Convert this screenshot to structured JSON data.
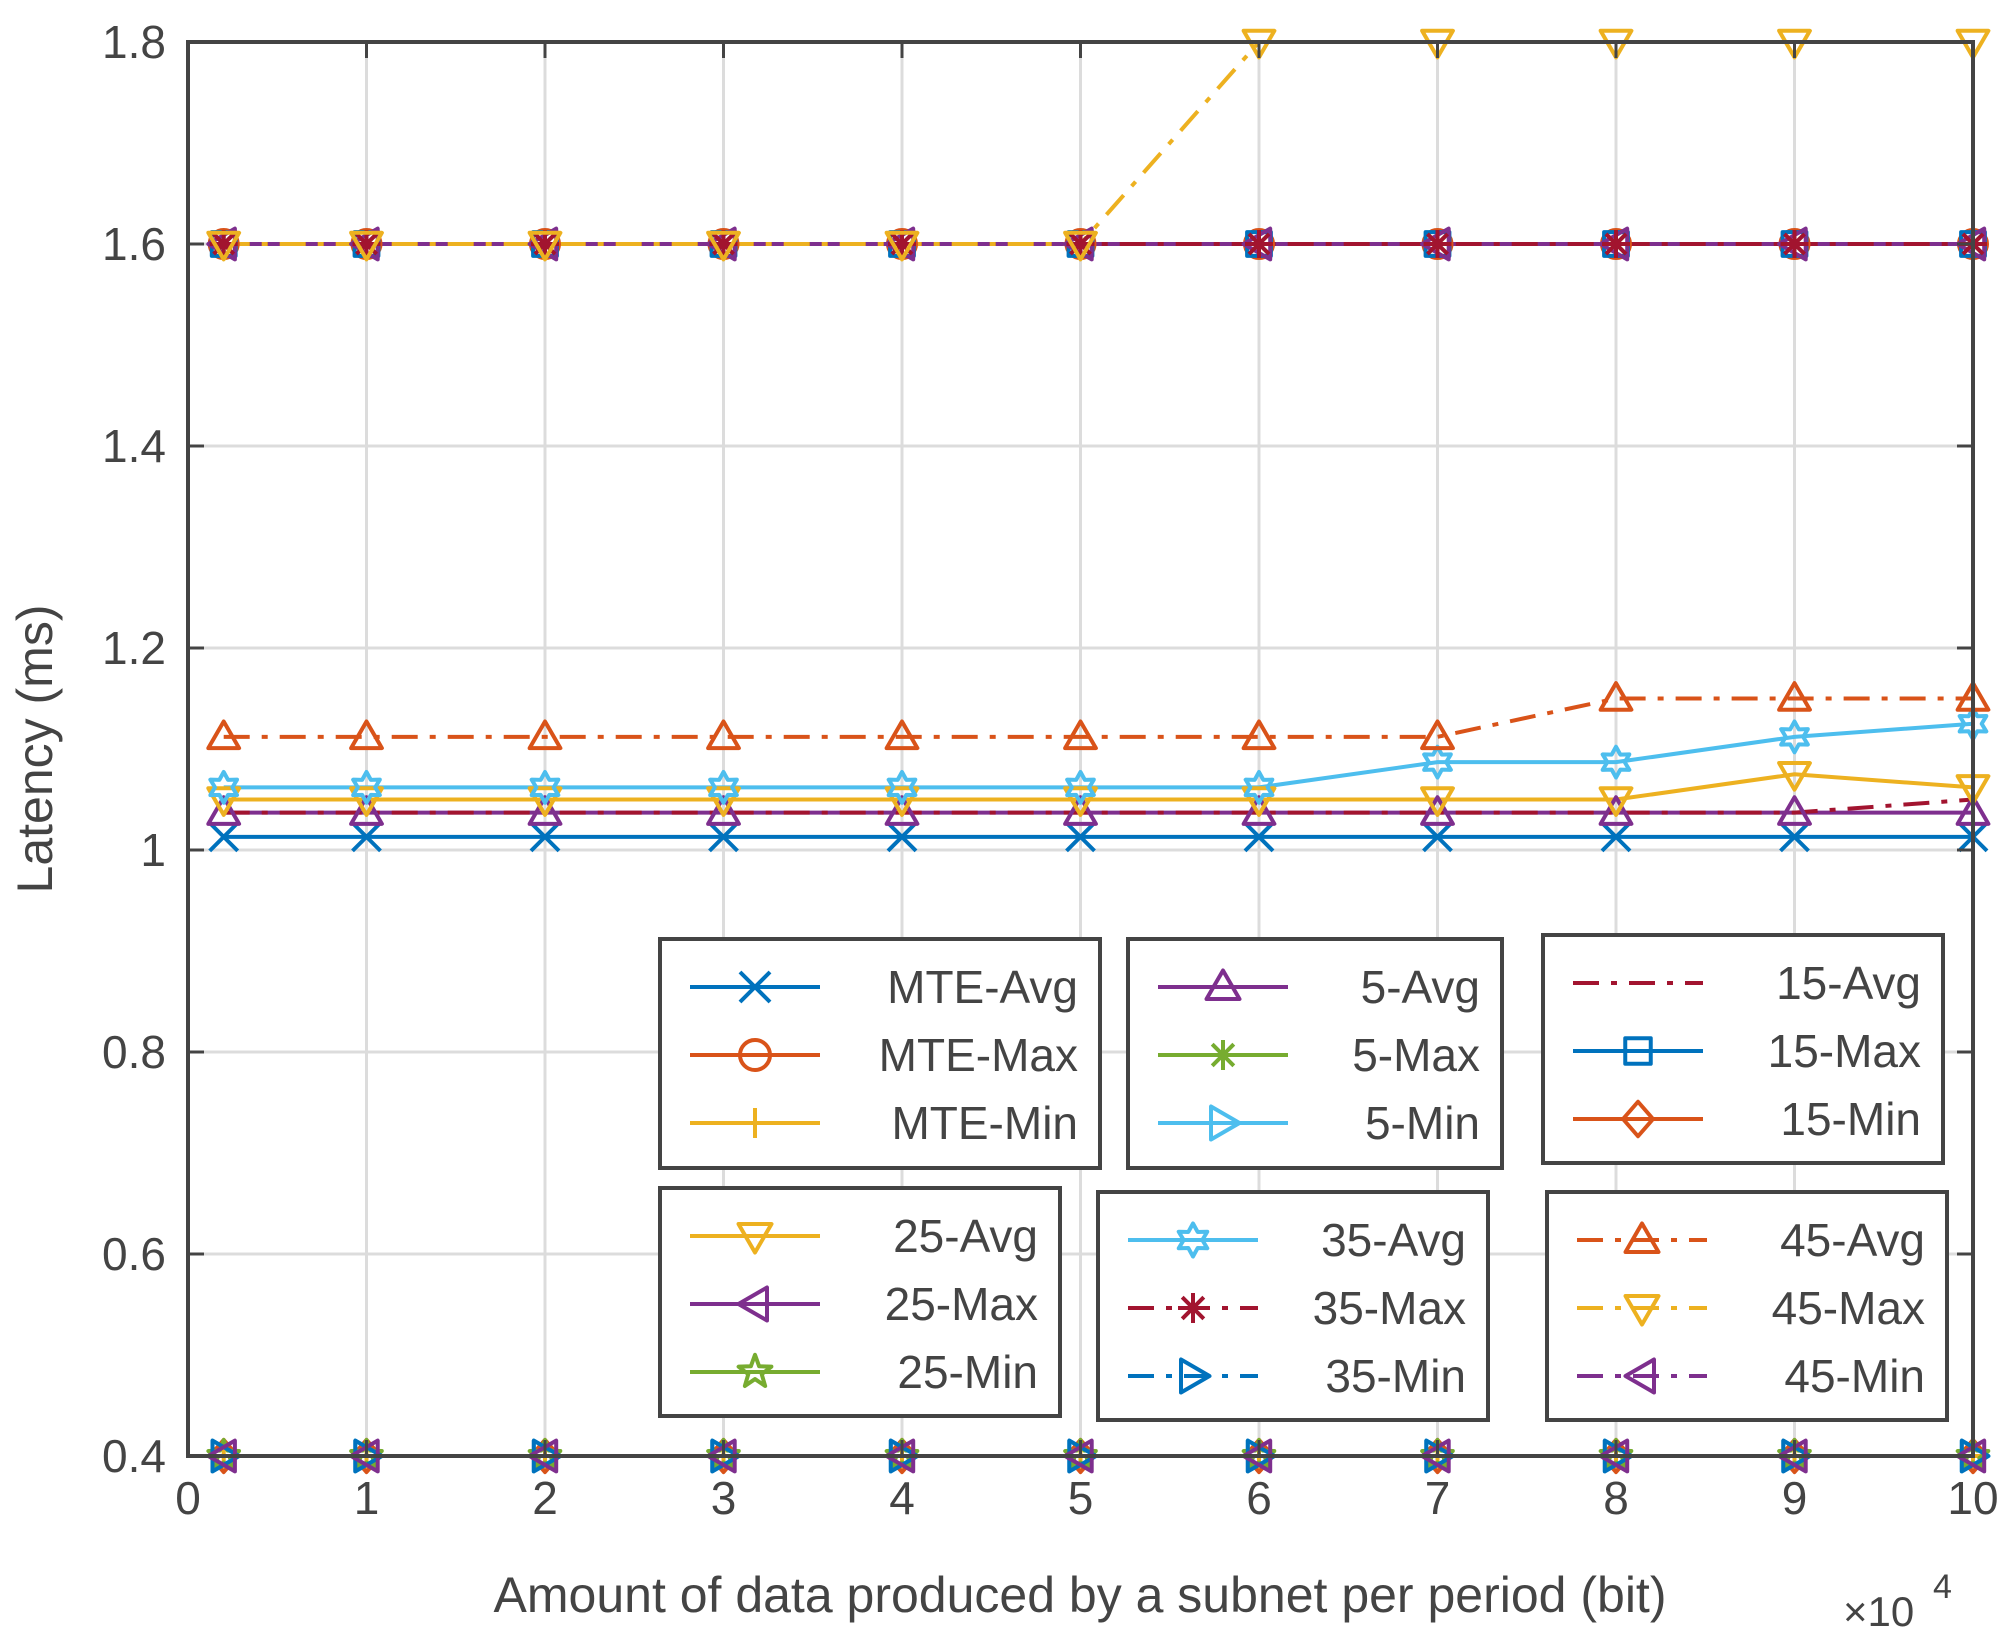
{
  "chart_data": {
    "type": "line",
    "title": "",
    "xlabel": "Amount of data produced by a subnet per period (bit)",
    "ylabel": "Latency (ms)",
    "x_multiplier_label": "×10",
    "x_multiplier_exponent": "4",
    "xlim": [
      0,
      10
    ],
    "ylim": [
      0.4,
      1.8
    ],
    "xticks": [
      "0",
      "1",
      "2",
      "3",
      "4",
      "5",
      "6",
      "7",
      "8",
      "9",
      "10"
    ],
    "yticks": [
      "0.4",
      "0.6",
      "0.8",
      "1",
      "1.2",
      "1.4",
      "1.6",
      "1.8"
    ],
    "grid": true,
    "x": [
      0.2,
      1,
      2,
      3,
      4,
      5,
      6,
      7,
      8,
      9,
      10
    ],
    "series": [
      {
        "name": "MTE-Avg",
        "color": "#0072BD",
        "dash": "solid",
        "marker": "x",
        "values": [
          1.013,
          1.013,
          1.013,
          1.013,
          1.013,
          1.013,
          1.013,
          1.013,
          1.013,
          1.013,
          1.013
        ]
      },
      {
        "name": "MTE-Max",
        "color": "#D95319",
        "dash": "solid",
        "marker": "circle",
        "values": [
          1.6,
          1.6,
          1.6,
          1.6,
          1.6,
          1.6,
          1.6,
          1.6,
          1.6,
          1.6,
          1.6
        ]
      },
      {
        "name": "MTE-Min",
        "color": "#EDB120",
        "dash": "solid",
        "marker": "plus",
        "values": [
          0.4,
          0.4,
          0.4,
          0.4,
          0.4,
          0.4,
          0.4,
          0.4,
          0.4,
          0.4,
          0.4
        ]
      },
      {
        "name": "5-Avg",
        "color": "#7E2F8E",
        "dash": "solid",
        "marker": "triangle-up",
        "values": [
          1.037,
          1.037,
          1.037,
          1.037,
          1.037,
          1.037,
          1.037,
          1.037,
          1.037,
          1.037,
          1.037
        ]
      },
      {
        "name": "5-Max",
        "color": "#77AC30",
        "dash": "solid",
        "marker": "asterisk",
        "values": [
          1.6,
          1.6,
          1.6,
          1.6,
          1.6,
          1.6,
          1.6,
          1.6,
          1.6,
          1.6,
          1.6
        ]
      },
      {
        "name": "5-Min",
        "color": "#4DBEEE",
        "dash": "solid",
        "marker": "triangle-right",
        "values": [
          0.4,
          0.4,
          0.4,
          0.4,
          0.4,
          0.4,
          0.4,
          0.4,
          0.4,
          0.4,
          0.4
        ]
      },
      {
        "name": "15-Avg",
        "color": "#A2142F",
        "dash": "dashdot",
        "marker": "none",
        "values": [
          1.037,
          1.037,
          1.037,
          1.037,
          1.037,
          1.037,
          1.037,
          1.037,
          1.037,
          1.037,
          1.05
        ]
      },
      {
        "name": "15-Max",
        "color": "#0072BD",
        "dash": "solid",
        "marker": "square",
        "values": [
          1.6,
          1.6,
          1.6,
          1.6,
          1.6,
          1.6,
          1.6,
          1.6,
          1.6,
          1.6,
          1.6
        ]
      },
      {
        "name": "15-Min",
        "color": "#D95319",
        "dash": "solid",
        "marker": "diamond",
        "values": [
          0.4,
          0.4,
          0.4,
          0.4,
          0.4,
          0.4,
          0.4,
          0.4,
          0.4,
          0.4,
          0.4
        ]
      },
      {
        "name": "25-Avg",
        "color": "#EDB120",
        "dash": "solid",
        "marker": "triangle-down",
        "values": [
          1.05,
          1.05,
          1.05,
          1.05,
          1.05,
          1.05,
          1.05,
          1.05,
          1.05,
          1.075,
          1.062
        ]
      },
      {
        "name": "25-Max",
        "color": "#7E2F8E",
        "dash": "solid",
        "marker": "triangle-left",
        "values": [
          1.6,
          1.6,
          1.6,
          1.6,
          1.6,
          1.6,
          1.6,
          1.6,
          1.6,
          1.6,
          1.6
        ]
      },
      {
        "name": "25-Min",
        "color": "#77AC30",
        "dash": "solid",
        "marker": "pentagram",
        "values": [
          0.4,
          0.4,
          0.4,
          0.4,
          0.4,
          0.4,
          0.4,
          0.4,
          0.4,
          0.4,
          0.4
        ]
      },
      {
        "name": "35-Avg",
        "color": "#4DBEEE",
        "dash": "solid",
        "marker": "hexagram",
        "values": [
          1.062,
          1.062,
          1.062,
          1.062,
          1.062,
          1.062,
          1.062,
          1.087,
          1.087,
          1.112,
          1.125
        ]
      },
      {
        "name": "35-Max",
        "color": "#A2142F",
        "dash": "dashdot",
        "marker": "asterisk",
        "values": [
          1.6,
          1.6,
          1.6,
          1.6,
          1.6,
          1.6,
          1.6,
          1.6,
          1.6,
          1.6,
          1.6
        ]
      },
      {
        "name": "35-Min",
        "color": "#0072BD",
        "dash": "dashdot",
        "marker": "triangle-right",
        "values": [
          0.4,
          0.4,
          0.4,
          0.4,
          0.4,
          0.4,
          0.4,
          0.4,
          0.4,
          0.4,
          0.4
        ]
      },
      {
        "name": "45-Avg",
        "color": "#D95319",
        "dash": "dashdot",
        "marker": "triangle-up",
        "values": [
          1.112,
          1.112,
          1.112,
          1.112,
          1.112,
          1.112,
          1.112,
          1.112,
          1.15,
          1.15,
          1.15
        ]
      },
      {
        "name": "45-Max",
        "color": "#EDB120",
        "dash": "dashdot",
        "marker": "triangle-down",
        "values": [
          1.6,
          1.6,
          1.6,
          1.6,
          1.6,
          1.6,
          1.8,
          1.8,
          1.8,
          1.8,
          1.8
        ]
      },
      {
        "name": "45-Min",
        "color": "#7E2F8E",
        "dash": "dashdot",
        "marker": "triangle-left",
        "values": [
          0.4,
          0.4,
          0.4,
          0.4,
          0.4,
          0.4,
          0.4,
          0.4,
          0.4,
          0.4,
          0.4
        ]
      }
    ],
    "legends": [
      {
        "entries": [
          "MTE-Avg",
          "MTE-Max",
          "MTE-Min"
        ]
      },
      {
        "entries": [
          "5-Avg",
          "5-Max",
          "5-Min"
        ]
      },
      {
        "entries": [
          "15-Avg",
          "15-Max",
          "15-Min"
        ]
      },
      {
        "entries": [
          "25-Avg",
          "25-Max",
          "25-Min"
        ]
      },
      {
        "entries": [
          "35-Avg",
          "35-Max",
          "35-Min"
        ]
      },
      {
        "entries": [
          "45-Avg",
          "45-Max",
          "45-Min"
        ]
      }
    ]
  }
}
